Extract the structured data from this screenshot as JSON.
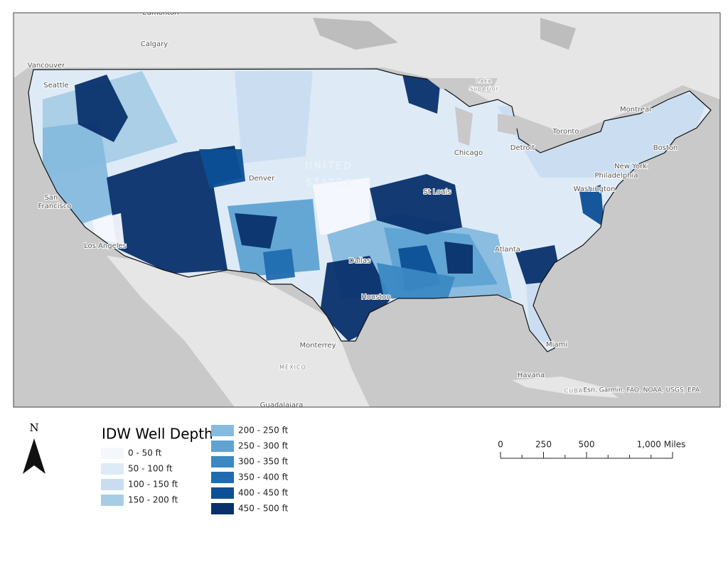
{
  "map": {
    "places": [
      {
        "label": "Edmonton"
      },
      {
        "label": "Calgary"
      },
      {
        "label": "Vancouver"
      },
      {
        "label": "Seattle"
      },
      {
        "label": "San"
      },
      {
        "label": "Francisco"
      },
      {
        "label": "Los Angeles"
      },
      {
        "label": "Denver"
      },
      {
        "label": "UNITED"
      },
      {
        "label": "STATES"
      },
      {
        "label": "Lake"
      },
      {
        "label": "Superior"
      },
      {
        "label": "Chicago"
      },
      {
        "label": "Detroit"
      },
      {
        "label": "Toronto"
      },
      {
        "label": "Montreal"
      },
      {
        "label": "Boston"
      },
      {
        "label": "New York"
      },
      {
        "label": "Philadelphia"
      },
      {
        "label": "Washington"
      },
      {
        "label": "St Louis"
      },
      {
        "label": "Dallas"
      },
      {
        "label": "Houston"
      },
      {
        "label": "Atlanta"
      },
      {
        "label": "Miami"
      },
      {
        "label": "Monterrey"
      },
      {
        "label": "MÉXICO"
      },
      {
        "label": "Havana"
      },
      {
        "label": "CUBA"
      },
      {
        "label": "Guadalajara"
      }
    ],
    "attribution": "Esri, Garmin, FAO, NOAA, USGS, EPA"
  },
  "north_arrow": {
    "label": "N"
  },
  "legend": {
    "title": "IDW Well Depth",
    "classes": [
      {
        "label": "0 - 50 ft",
        "color": "#f4f8fd"
      },
      {
        "label": "50 - 100 ft",
        "color": "#deebf7"
      },
      {
        "label": "100 - 150 ft",
        "color": "#c9ddf0"
      },
      {
        "label": "150 - 200 ft",
        "color": "#a7cde5"
      },
      {
        "label": "200 - 250 ft",
        "color": "#85bbde"
      },
      {
        "label": "250 - 300 ft",
        "color": "#5ea3d2"
      },
      {
        "label": "300 - 350 ft",
        "color": "#3b88c3"
      },
      {
        "label": "350 - 400 ft",
        "color": "#1f6cb0"
      },
      {
        "label": "400 - 450 ft",
        "color": "#0b4f96"
      },
      {
        "label": "450 - 500 ft",
        "color": "#08306b"
      }
    ]
  },
  "scale_bar": {
    "ticks": [
      0,
      250,
      500,
      {
        "value": 1000,
        "label": "1,000 Miles"
      }
    ]
  }
}
